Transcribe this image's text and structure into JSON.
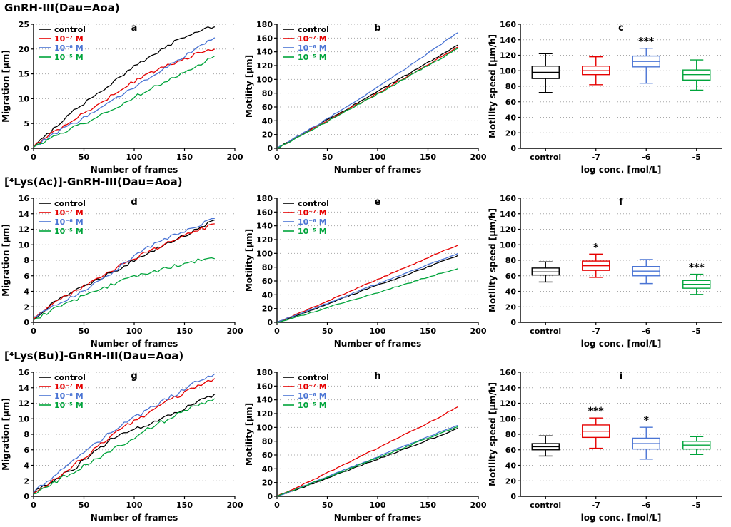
{
  "chart_data": {
    "type": "figure",
    "colors": {
      "control": "#000000",
      "conc7": "#e60000",
      "conc6": "#4a74d4",
      "conc5": "#00a43b",
      "grid": "#a8a8a8",
      "axis": "#000000"
    },
    "legend_labels": [
      "control",
      "10⁻⁷ M",
      "10⁻⁶ M",
      "10⁻⁵ M"
    ],
    "rows": [
      {
        "title": "GnRH-III(Dau=Aoa)",
        "panels": [
          {
            "type": "line",
            "letter": "a",
            "xlabel": "Number of frames",
            "ylabel": "Migration [μm]",
            "xlim": [
              0,
              200
            ],
            "xticks": [
              0,
              50,
              100,
              150,
              200
            ],
            "ylim": [
              0,
              25
            ],
            "ytick_step": 5,
            "jitter": 0.35,
            "legend": [
              "control",
              "10⁻⁷ M",
              "10⁻⁶ M",
              "10⁻⁵ M"
            ],
            "x": [
              0,
              20,
              40,
              60,
              80,
              100,
              120,
              140,
              160,
              180
            ],
            "series": [
              {
                "name": "control",
                "color_key": "control",
                "values": [
                  0.3,
                  4.0,
                  7.5,
                  10.5,
                  13.5,
                  16.5,
                  19.0,
                  21.5,
                  23.5,
                  24.5
                ]
              },
              {
                "name": "10⁻⁷ M",
                "color_key": "conc7",
                "values": [
                  0.3,
                  3.2,
                  5.8,
                  8.3,
                  11.0,
                  13.5,
                  15.5,
                  17.3,
                  18.8,
                  20.0
                ]
              },
              {
                "name": "10⁻⁶ M",
                "color_key": "conc6",
                "values": [
                  0.3,
                  2.8,
                  5.0,
                  7.3,
                  9.8,
                  12.3,
                  15.0,
                  17.5,
                  19.8,
                  22.3
                ]
              },
              {
                "name": "10⁻⁵ M",
                "color_key": "conc5",
                "values": [
                  0.2,
                  2.2,
                  4.2,
                  6.0,
                  8.0,
                  10.3,
                  12.3,
                  14.3,
                  16.3,
                  18.6
                ]
              }
            ]
          },
          {
            "type": "line",
            "letter": "b",
            "xlabel": "Number of frames",
            "ylabel": "Motility [μm]",
            "xlim": [
              0,
              200
            ],
            "xticks": [
              0,
              50,
              100,
              150,
              200
            ],
            "ylim": [
              0,
              180
            ],
            "ytick_step": 20,
            "jitter": 1.0,
            "legend": [
              "control",
              "10⁻⁷ M",
              "10⁻⁶ M",
              "10⁻⁵ M"
            ],
            "x": [
              0,
              20,
              40,
              60,
              80,
              100,
              120,
              140,
              160,
              180
            ],
            "series": [
              {
                "name": "control",
                "color_key": "control",
                "values": [
                  0,
                  16,
                  33,
                  49,
                  66,
                  83,
                  99,
                  116,
                  133,
                  150
                ]
              },
              {
                "name": "10⁻⁷ M",
                "color_key": "conc7",
                "values": [
                  0,
                  16,
                  32,
                  48,
                  64,
                  80,
                  97,
                  113,
                  130,
                  147
                ]
              },
              {
                "name": "10⁻⁶ M",
                "color_key": "conc6",
                "values": [
                  0,
                  17,
                  34,
                  52,
                  70,
                  89,
                  108,
                  128,
                  148,
                  168
                ]
              },
              {
                "name": "10⁻⁵ M",
                "color_key": "conc5",
                "values": [
                  0,
                  15,
                  31,
                  47,
                  63,
                  79,
                  95,
                  112,
                  128,
                  145
                ]
              }
            ]
          },
          {
            "type": "box",
            "letter": "c",
            "xlabel": "log conc. [mol/L]",
            "ylabel": "Motility speed [μm/h]",
            "ylim": [
              0,
              160
            ],
            "ytick_step": 20,
            "categories": [
              "control",
              "-7",
              "-6",
              "-5"
            ],
            "boxes": [
              {
                "color_key": "control",
                "whisker_low": 72,
                "q1": 90,
                "median": 98,
                "q3": 106,
                "whisker_high": 122,
                "sig": ""
              },
              {
                "color_key": "conc7",
                "whisker_low": 82,
                "q1": 95,
                "median": 100,
                "q3": 106,
                "whisker_high": 118,
                "sig": ""
              },
              {
                "color_key": "conc6",
                "whisker_low": 84,
                "q1": 105,
                "median": 112,
                "q3": 119,
                "whisker_high": 129,
                "sig": "***"
              },
              {
                "color_key": "conc5",
                "whisker_low": 75,
                "q1": 88,
                "median": 95,
                "q3": 101,
                "whisker_high": 114,
                "sig": ""
              }
            ]
          }
        ]
      },
      {
        "title": "[⁴Lys(Ac)]-GnRH-III(Dau=Aoa)",
        "panels": [
          {
            "type": "line",
            "letter": "d",
            "xlabel": "Number of frames",
            "ylabel": "Migration [μm]",
            "xlim": [
              0,
              200
            ],
            "xticks": [
              0,
              50,
              100,
              150,
              200
            ],
            "ylim": [
              0,
              16
            ],
            "ytick_step": 2,
            "jitter": 0.25,
            "legend": [
              "control",
              "10⁻⁷ M",
              "10⁻⁶ M",
              "10⁻⁵ M"
            ],
            "x": [
              0,
              20,
              40,
              60,
              80,
              100,
              120,
              140,
              160,
              180
            ],
            "series": [
              {
                "name": "control",
                "color_key": "control",
                "values": [
                  0.4,
                  2.6,
                  4.0,
                  5.3,
                  6.6,
                  8.0,
                  9.4,
                  10.6,
                  11.8,
                  13.2
                ]
              },
              {
                "name": "10⁻⁷ M",
                "color_key": "conc7",
                "values": [
                  0.4,
                  2.4,
                  3.9,
                  5.4,
                  6.9,
                  8.2,
                  9.4,
                  10.6,
                  11.7,
                  12.7
                ]
              },
              {
                "name": "10⁻⁶ M",
                "color_key": "conc6",
                "values": [
                  0.7,
                  2.1,
                  3.4,
                  5.0,
                  6.6,
                  8.6,
                  10.1,
                  11.3,
                  12.3,
                  13.4
                ]
              },
              {
                "name": "10⁻⁵ M",
                "color_key": "conc5",
                "values": [
                  0.3,
                  1.7,
                  2.9,
                  3.9,
                  5.0,
                  5.9,
                  6.6,
                  7.3,
                  7.9,
                  8.2
                ]
              }
            ]
          },
          {
            "type": "line",
            "letter": "e",
            "xlabel": "Number of frames",
            "ylabel": "Motility [μm]",
            "xlim": [
              0,
              200
            ],
            "xticks": [
              0,
              50,
              100,
              150,
              200
            ],
            "ylim": [
              0,
              180
            ],
            "ytick_step": 20,
            "jitter": 0.8,
            "legend": [
              "control",
              "10⁻⁷ M",
              "10⁻⁶ M",
              "10⁻⁵ M"
            ],
            "x": [
              0,
              20,
              40,
              60,
              80,
              100,
              120,
              140,
              160,
              180
            ],
            "series": [
              {
                "name": "control",
                "color_key": "control",
                "values": [
                  0,
                  10,
                  21,
                  32,
                  43,
                  54,
                  64,
                  75,
                  86,
                  97
                ]
              },
              {
                "name": "10⁻⁷ M",
                "color_key": "conc7",
                "values": [
                  0,
                  12,
                  24,
                  37,
                  50,
                  62,
                  75,
                  87,
                  100,
                  112
                ]
              },
              {
                "name": "10⁻⁶ M",
                "color_key": "conc6",
                "values": [
                  0,
                  11,
                  22,
                  33,
                  45,
                  56,
                  67,
                  78,
                  89,
                  100
                ]
              },
              {
                "name": "10⁻⁵ M",
                "color_key": "conc5",
                "values": [
                  0,
                  8,
                  17,
                  26,
                  34,
                  43,
                  52,
                  61,
                  70,
                  78
                ]
              }
            ]
          },
          {
            "type": "box",
            "letter": "f",
            "xlabel": "log conc. [mol/L]",
            "ylabel": "Motility speed [μm/h]",
            "ylim": [
              0,
              160
            ],
            "ytick_step": 20,
            "categories": [
              "control",
              "-7",
              "-6",
              "-5"
            ],
            "boxes": [
              {
                "color_key": "control",
                "whisker_low": 52,
                "q1": 61,
                "median": 65,
                "q3": 70,
                "whisker_high": 78,
                "sig": ""
              },
              {
                "color_key": "conc7",
                "whisker_low": 58,
                "q1": 67,
                "median": 73,
                "q3": 79,
                "whisker_high": 88,
                "sig": "*"
              },
              {
                "color_key": "conc6",
                "whisker_low": 50,
                "q1": 60,
                "median": 66,
                "q3": 72,
                "whisker_high": 81,
                "sig": ""
              },
              {
                "color_key": "conc5",
                "whisker_low": 36,
                "q1": 44,
                "median": 49,
                "q3": 54,
                "whisker_high": 62,
                "sig": "***"
              }
            ]
          }
        ]
      },
      {
        "title": "[⁴Lys(Bu)]-GnRH-III(Dau=Aoa)",
        "panels": [
          {
            "type": "line",
            "letter": "g",
            "xlabel": "Number of frames",
            "ylabel": "Migration [μm]",
            "xlim": [
              0,
              200
            ],
            "xticks": [
              0,
              50,
              100,
              150,
              200
            ],
            "ylim": [
              0,
              16
            ],
            "ytick_step": 2,
            "jitter": 0.28,
            "legend": [
              "control",
              "10⁻⁷ M",
              "10⁻⁶ M",
              "10⁻⁵ M"
            ],
            "x": [
              0,
              20,
              40,
              60,
              80,
              100,
              120,
              140,
              160,
              180
            ],
            "series": [
              {
                "name": "control",
                "color_key": "control",
                "values": [
                  0.4,
                  2.0,
                  3.6,
                  5.6,
                  7.6,
                  8.6,
                  9.6,
                  10.7,
                  11.9,
                  13.2
                ]
              },
              {
                "name": "10⁻⁷ M",
                "color_key": "conc7",
                "values": [
                  0.4,
                  2.2,
                  4.1,
                  6.0,
                  8.0,
                  9.7,
                  11.2,
                  12.7,
                  14.1,
                  15.2
                ]
              },
              {
                "name": "10⁻⁶ M",
                "color_key": "conc6",
                "values": [
                  0.5,
                  2.5,
                  4.6,
                  6.6,
                  8.5,
                  10.1,
                  11.6,
                  13.1,
                  14.6,
                  15.8
                ]
              },
              {
                "name": "10⁻⁵ M",
                "color_key": "conc5",
                "values": [
                  0.3,
                  1.8,
                  3.2,
                  4.6,
                  6.1,
                  7.6,
                  9.1,
                  10.4,
                  11.6,
                  12.6
                ]
              }
            ]
          },
          {
            "type": "line",
            "letter": "h",
            "xlabel": "Number of frames",
            "ylabel": "Motility [μm]",
            "xlim": [
              0,
              200
            ],
            "xticks": [
              0,
              50,
              100,
              150,
              200
            ],
            "ylim": [
              0,
              180
            ],
            "ytick_step": 20,
            "jitter": 0.8,
            "legend": [
              "control",
              "10⁻⁷ M",
              "10⁻⁶ M",
              "10⁻⁵ M"
            ],
            "x": [
              0,
              20,
              40,
              60,
              80,
              100,
              120,
              140,
              160,
              180
            ],
            "series": [
              {
                "name": "control",
                "color_key": "control",
                "values": [
                  0,
                  10,
                  21,
                  32,
                  43,
                  54,
                  65,
                  76,
                  87,
                  99
                ]
              },
              {
                "name": "10⁻⁷ M",
                "color_key": "conc7",
                "values": [
                  0,
                  13,
                  27,
                  41,
                  56,
                  70,
                  85,
                  99,
                  114,
                  130
                ]
              },
              {
                "name": "10⁻⁶ M",
                "color_key": "conc6",
                "values": [
                  0,
                  11,
                  23,
                  34,
                  46,
                  57,
                  69,
                  80,
                  92,
                  103
                ]
              },
              {
                "name": "10⁻⁵ M",
                "color_key": "conc5",
                "values": [
                  0,
                  11,
                  22,
                  33,
                  45,
                  56,
                  67,
                  79,
                  90,
                  101
                ]
              }
            ]
          },
          {
            "type": "box",
            "letter": "i",
            "xlabel": "log conc. [mol/L]",
            "ylabel": "Motility speed [μm/h]",
            "ylim": [
              0,
              160
            ],
            "ytick_step": 20,
            "categories": [
              "control",
              "-7",
              "-6",
              "-5"
            ],
            "boxes": [
              {
                "color_key": "control",
                "whisker_low": 52,
                "q1": 60,
                "median": 64,
                "q3": 68,
                "whisker_high": 78,
                "sig": ""
              },
              {
                "color_key": "conc7",
                "whisker_low": 62,
                "q1": 76,
                "median": 84,
                "q3": 92,
                "whisker_high": 101,
                "sig": "***"
              },
              {
                "color_key": "conc6",
                "whisker_low": 48,
                "q1": 61,
                "median": 68,
                "q3": 75,
                "whisker_high": 89,
                "sig": "*"
              },
              {
                "color_key": "conc5",
                "whisker_low": 54,
                "q1": 61,
                "median": 66,
                "q3": 71,
                "whisker_high": 77,
                "sig": ""
              }
            ]
          }
        ]
      }
    ]
  }
}
